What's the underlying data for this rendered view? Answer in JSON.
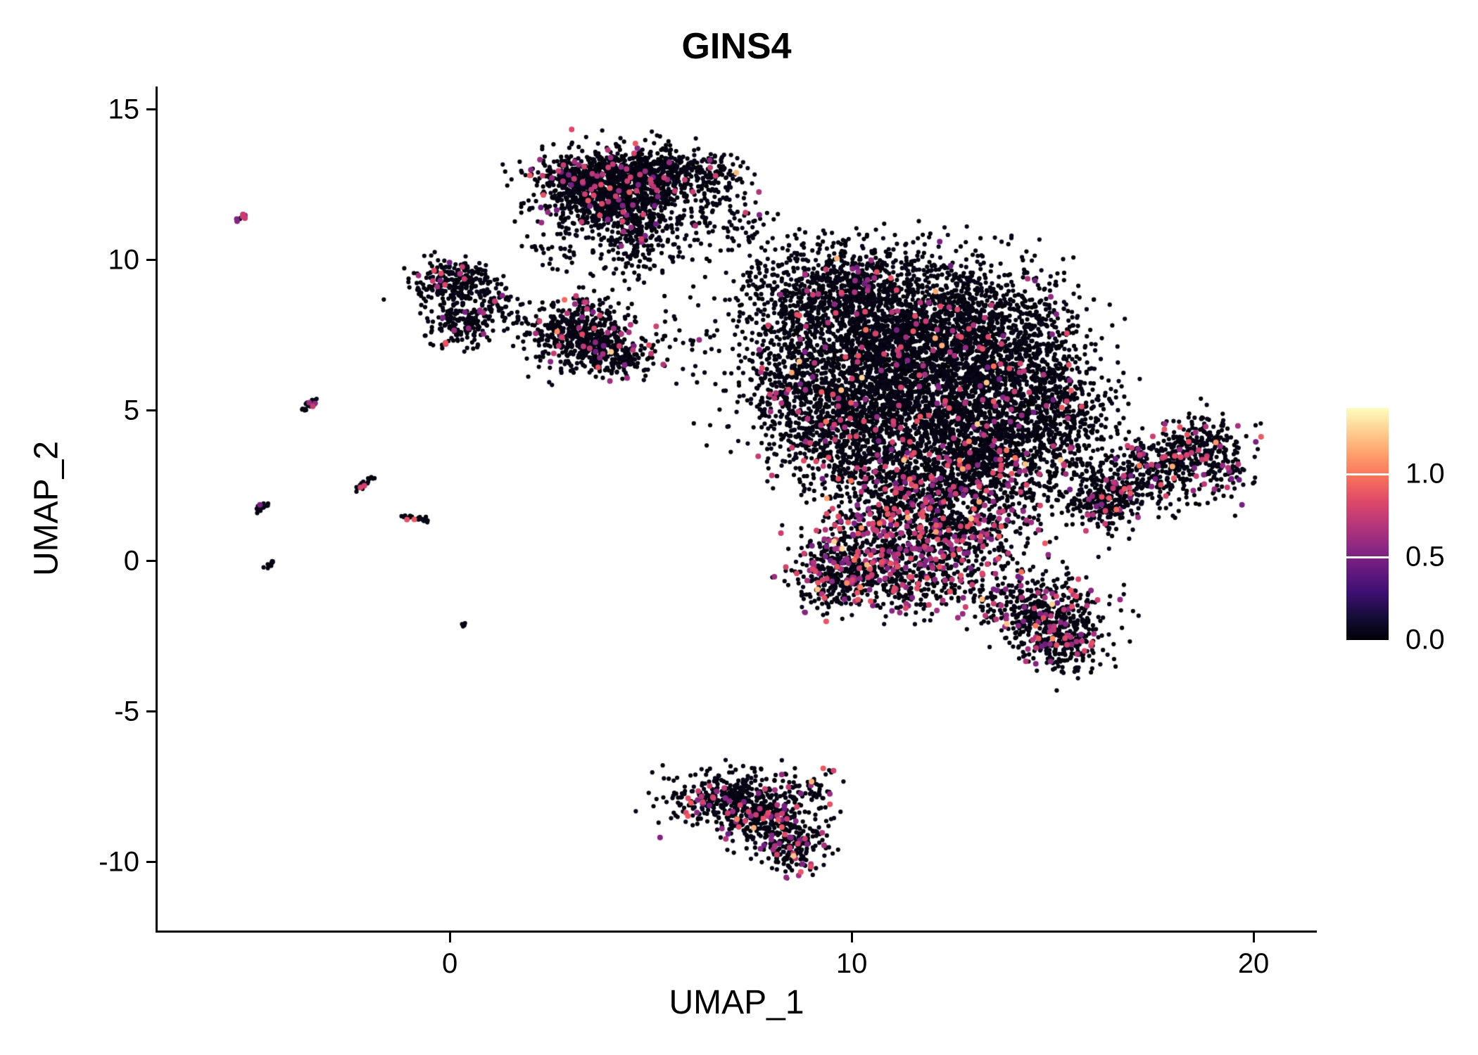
{
  "chart_data": {
    "type": "scatter",
    "title": "GINS4",
    "xlabel": "UMAP_1",
    "ylabel": "UMAP_2",
    "xlim": [
      -7.27,
      21.54
    ],
    "ylim": [
      -12.27,
      15.77
    ],
    "xticks": [
      {
        "label": "0",
        "value": 0
      },
      {
        "label": "10",
        "value": 10
      },
      {
        "label": "20",
        "value": 20
      }
    ],
    "yticks": [
      {
        "label": "15",
        "value": 15
      },
      {
        "label": "10",
        "value": 10
      },
      {
        "label": "5",
        "value": 5
      },
      {
        "label": "0",
        "value": 0
      },
      {
        "label": "-5",
        "value": -5
      },
      {
        "label": "-10",
        "value": -10
      }
    ],
    "grid": false,
    "background": "#ffffff",
    "legend_position": "right",
    "point_color_default": "#000004",
    "accent_colors": {
      "mid": "#b73779",
      "high": "#f7705c",
      "max": "#fcfdbf"
    },
    "point_radius": 3.1,
    "point_radius_colored": 4.0,
    "seed": 1337,
    "colorbar": {
      "domain": [
        0,
        1.4
      ],
      "ticks": [
        {
          "label": "1.0",
          "value": 1.0
        },
        {
          "label": "0.5",
          "value": 0.5
        },
        {
          "label": "0.0",
          "value": 0.0
        }
      ],
      "colormap": "magma",
      "colormap_stops": [
        {
          "t": 0.0,
          "color": "#000004"
        },
        {
          "t": 0.1,
          "color": "#140e36"
        },
        {
          "t": 0.2,
          "color": "#3b0f70"
        },
        {
          "t": 0.3,
          "color": "#641a80"
        },
        {
          "t": 0.4,
          "color": "#8c2981"
        },
        {
          "t": 0.5,
          "color": "#b73779"
        },
        {
          "t": 0.6,
          "color": "#de4968"
        },
        {
          "t": 0.7,
          "color": "#f7705c"
        },
        {
          "t": 0.8,
          "color": "#fe9f6d"
        },
        {
          "t": 0.9,
          "color": "#fecf92"
        },
        {
          "t": 1.0,
          "color": "#fcfdbf"
        }
      ]
    },
    "clusters": [
      {
        "cx": 3.6,
        "cy": 12.55,
        "sx": 0.85,
        "sy": 0.55,
        "n": 850,
        "p_mid": 0.05,
        "p_high": 0.004
      },
      {
        "cx": 5.1,
        "cy": 12.85,
        "sx": 0.75,
        "sy": 0.45,
        "n": 400,
        "p_mid": 0.04,
        "p_high": 0.003
      },
      {
        "cx": 4.35,
        "cy": 11.6,
        "sx": 0.8,
        "sy": 0.55,
        "n": 380,
        "p_mid": 0.06,
        "p_high": 0.004
      },
      {
        "cx": 4.7,
        "cy": 10.4,
        "sx": 0.55,
        "sy": 0.6,
        "n": 110,
        "p_mid": 0.05,
        "p_high": 0
      },
      {
        "cx": 6.3,
        "cy": 11.6,
        "sx": 0.55,
        "sy": 0.95,
        "n": 90,
        "p_mid": 0.03,
        "p_high": 0
      },
      {
        "cx": 6.55,
        "cy": 12.9,
        "sx": 0.35,
        "sy": 0.3,
        "n": 70,
        "p_mid": 0.03,
        "p_high": 0
      },
      {
        "cx": 7.2,
        "cy": 11.2,
        "sx": 0.5,
        "sy": 0.7,
        "n": 50,
        "p_mid": 0.02,
        "p_high": 0
      },
      {
        "cx": 2.7,
        "cy": 10.3,
        "sx": 0.5,
        "sy": 0.5,
        "n": 35,
        "p_mid": 0.03,
        "p_high": 0
      },
      {
        "cx": 0.15,
        "cy": 9.3,
        "sx": 0.5,
        "sy": 0.35,
        "n": 230,
        "p_mid": 0.05,
        "p_high": 0.004
      },
      {
        "cx": 0.25,
        "cy": 7.95,
        "sx": 0.4,
        "sy": 0.45,
        "n": 170,
        "p_mid": 0.06,
        "p_high": 0
      },
      {
        "cx": 1.05,
        "cy": 8.6,
        "sx": 0.35,
        "sy": 0.3,
        "n": 60,
        "p_mid": 0.03,
        "p_high": 0
      },
      {
        "cx": 1.8,
        "cy": 7.8,
        "sx": 0.5,
        "sy": 0.5,
        "n": 30,
        "p_mid": 0.03,
        "p_high": 0
      },
      {
        "cx": 3.3,
        "cy": 7.5,
        "sx": 0.62,
        "sy": 0.58,
        "n": 520,
        "p_mid": 0.07,
        "p_high": 0.004
      },
      {
        "cx": 4.25,
        "cy": 6.85,
        "sx": 0.42,
        "sy": 0.35,
        "n": 130,
        "p_mid": 0.05,
        "p_high": 0
      },
      {
        "cx": 5.8,
        "cy": 7.3,
        "sx": 0.8,
        "sy": 0.5,
        "n": 40,
        "p_mid": 0.05,
        "p_high": 0
      },
      {
        "cx": 9.6,
        "cy": 8.9,
        "sx": 1.1,
        "sy": 0.85,
        "n": 850,
        "p_mid": 0.02,
        "p_high": 0.002
      },
      {
        "cx": 12.1,
        "cy": 7.9,
        "sx": 1.5,
        "sy": 1.05,
        "n": 1500,
        "p_mid": 0.025,
        "p_high": 0.002
      },
      {
        "cx": 10.6,
        "cy": 6.1,
        "sx": 1.45,
        "sy": 1.15,
        "n": 1450,
        "p_mid": 0.03,
        "p_high": 0.003
      },
      {
        "cx": 12.9,
        "cy": 5.1,
        "sx": 1.25,
        "sy": 1.15,
        "n": 1150,
        "p_mid": 0.03,
        "p_high": 0.002
      },
      {
        "cx": 10.0,
        "cy": 4.1,
        "sx": 1.0,
        "sy": 0.9,
        "n": 650,
        "p_mid": 0.05,
        "p_high": 0.004
      },
      {
        "cx": 11.6,
        "cy": 2.6,
        "sx": 1.05,
        "sy": 0.9,
        "n": 650,
        "p_mid": 0.08,
        "p_high": 0.004
      },
      {
        "cx": 12.4,
        "cy": 0.9,
        "sx": 0.95,
        "sy": 0.95,
        "n": 650,
        "p_mid": 0.2,
        "p_high": 0.008
      },
      {
        "cx": 10.4,
        "cy": 0.1,
        "sx": 0.85,
        "sy": 0.8,
        "n": 520,
        "p_mid": 0.22,
        "p_high": 0.008
      },
      {
        "cx": 9.5,
        "cy": -0.6,
        "sx": 0.5,
        "sy": 0.5,
        "n": 180,
        "p_mid": 0.15,
        "p_high": 0.005
      },
      {
        "cx": 14.3,
        "cy": 6.6,
        "sx": 0.8,
        "sy": 1.15,
        "n": 480,
        "p_mid": 0.03,
        "p_high": 0.002
      },
      {
        "cx": 15.3,
        "cy": 4.6,
        "sx": 0.7,
        "sy": 1.0,
        "n": 330,
        "p_mid": 0.04,
        "p_high": 0.003
      },
      {
        "cx": 13.9,
        "cy": 2.9,
        "sx": 0.85,
        "sy": 0.85,
        "n": 320,
        "p_mid": 0.08,
        "p_high": 0.004
      },
      {
        "cx": 8.4,
        "cy": 6.3,
        "sx": 0.6,
        "sy": 1.2,
        "n": 280,
        "p_mid": 0.05,
        "p_high": 0.003
      },
      {
        "cx": 13.3,
        "cy": 3.6,
        "sx": 0.6,
        "sy": 0.6,
        "n": 200,
        "p_mid": 0.06,
        "p_high": 0.003
      },
      {
        "cx": 12.2,
        "cy": -1.0,
        "sx": 0.9,
        "sy": 0.5,
        "n": 130,
        "p_mid": 0.15,
        "p_high": 0.004
      },
      {
        "cx": 16.3,
        "cy": 2.0,
        "sx": 0.65,
        "sy": 0.55,
        "n": 260,
        "p_mid": 0.1,
        "p_high": 0.004
      },
      {
        "cx": 17.5,
        "cy": 3.0,
        "sx": 0.7,
        "sy": 0.6,
        "n": 300,
        "p_mid": 0.1,
        "p_high": 0.004
      },
      {
        "cx": 18.7,
        "cy": 3.9,
        "sx": 0.55,
        "sy": 0.5,
        "n": 230,
        "p_mid": 0.1,
        "p_high": 0.004
      },
      {
        "cx": 19.3,
        "cy": 3.1,
        "sx": 0.35,
        "sy": 0.4,
        "n": 70,
        "p_mid": 0.08,
        "p_high": 0
      },
      {
        "cx": 14.8,
        "cy": -1.7,
        "sx": 0.75,
        "sy": 0.65,
        "n": 430,
        "p_mid": 0.12,
        "p_high": 0.006
      },
      {
        "cx": 15.3,
        "cy": -2.8,
        "sx": 0.5,
        "sy": 0.45,
        "n": 190,
        "p_mid": 0.1,
        "p_high": 0.004
      },
      {
        "cx": 6.9,
        "cy": -7.9,
        "sx": 0.75,
        "sy": 0.5,
        "n": 330,
        "p_mid": 0.08,
        "p_high": 0.004
      },
      {
        "cx": 7.9,
        "cy": -8.6,
        "sx": 0.7,
        "sy": 0.6,
        "n": 330,
        "p_mid": 0.12,
        "p_high": 0.006
      },
      {
        "cx": 8.6,
        "cy": -9.6,
        "sx": 0.4,
        "sy": 0.45,
        "n": 140,
        "p_mid": 0.12,
        "p_high": 0.006
      },
      {
        "cx": 9.0,
        "cy": -7.6,
        "sx": 0.35,
        "sy": 0.35,
        "n": 50,
        "p_mid": 0.1,
        "p_high": 0.01
      }
    ],
    "streaks": [
      {
        "x1": -5.3,
        "y1": 11.3,
        "x2": -5.1,
        "y2": 11.5,
        "n": 10,
        "jitter": 0.05,
        "p_mid": 0.6,
        "p_high": 0
      },
      {
        "x1": -3.65,
        "y1": 5.0,
        "x2": -3.3,
        "y2": 5.4,
        "n": 28,
        "jitter": 0.05,
        "p_mid": 0.15,
        "p_high": 0
      },
      {
        "x1": -2.3,
        "y1": 2.4,
        "x2": -1.95,
        "y2": 2.8,
        "n": 24,
        "jitter": 0.05,
        "p_mid": 0.12,
        "p_high": 0
      },
      {
        "x1": -4.8,
        "y1": 1.65,
        "x2": -4.55,
        "y2": 1.95,
        "n": 16,
        "jitter": 0.04,
        "p_mid": 0.1,
        "p_high": 0
      },
      {
        "x1": -1.15,
        "y1": 1.5,
        "x2": -0.55,
        "y2": 1.35,
        "n": 30,
        "jitter": 0.04,
        "p_mid": 0.05,
        "p_high": 0
      },
      {
        "x1": -4.55,
        "y1": -0.2,
        "x2": -4.4,
        "y2": 0.0,
        "n": 10,
        "jitter": 0.04,
        "p_mid": 0.05,
        "p_high": 0
      },
      {
        "x1": 0.3,
        "y1": -2.15,
        "x2": 0.4,
        "y2": -2.05,
        "n": 4,
        "jitter": 0.03,
        "p_mid": 0,
        "p_high": 0
      }
    ]
  }
}
